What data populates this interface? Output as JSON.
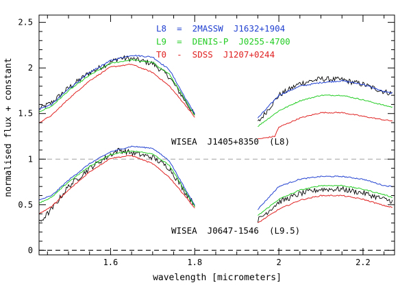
{
  "chart_data": {
    "type": "line",
    "xlabel": "wavelength [micrometers]",
    "ylabel": "normalised flux + constant",
    "xlim": [
      1.43,
      2.275
    ],
    "ylim": [
      -0.05,
      2.58
    ],
    "x_ticks": [
      1.6,
      1.8,
      2.0,
      2.2
    ],
    "x_tick_labels": [
      "1.6",
      "1.8",
      "2",
      "2.2"
    ],
    "y_ticks": [
      0,
      0.5,
      1.0,
      1.5,
      2.0,
      2.5
    ],
    "y_tick_labels": [
      "0",
      "0.5",
      "1",
      "1.5",
      "2",
      "2.5"
    ],
    "reference_lines": [
      1.0,
      0.0
    ],
    "legend": [
      {
        "label": "L8  =  2MASSW  J1632+1904",
        "color": "#1f3fd0"
      },
      {
        "label": "L9  =  DENIS-P  J0255-4700",
        "color": "#22cc22"
      },
      {
        "label": "T0  -  SDSS  J1207+0244",
        "color": "#e02020"
      }
    ],
    "annotations": [
      {
        "text": "WISEA  J1405+8350  (L8)",
        "x": 1.87,
        "y": 1.155
      },
      {
        "text": "WISEA  J0647-1546  (L9.5)",
        "x": 1.87,
        "y": 0.16
      }
    ],
    "series": [
      {
        "name": "WISEA J1405+8350 (L8)",
        "color": "#000000",
        "offset": 1.0,
        "noise": 0.03,
        "h": [
          [
            1.43,
            0.55
          ],
          [
            1.46,
            0.62
          ],
          [
            1.5,
            0.78
          ],
          [
            1.55,
            0.95
          ],
          [
            1.6,
            1.06
          ],
          [
            1.62,
            1.11
          ],
          [
            1.65,
            1.1
          ],
          [
            1.7,
            1.05
          ],
          [
            1.74,
            0.9
          ],
          [
            1.78,
            0.62
          ],
          [
            1.8,
            0.48
          ]
        ],
        "k": [
          [
            1.95,
            0.4
          ],
          [
            2.0,
            0.7
          ],
          [
            2.05,
            0.83
          ],
          [
            2.1,
            0.88
          ],
          [
            2.15,
            0.87
          ],
          [
            2.2,
            0.82
          ],
          [
            2.25,
            0.74
          ],
          [
            2.27,
            0.72
          ]
        ]
      },
      {
        "name": "L8 = 2MASSW J1632+1904",
        "color": "#1f3fd0",
        "offset": 1.0,
        "noise": 0.008,
        "h": [
          [
            1.43,
            0.55
          ],
          [
            1.46,
            0.6
          ],
          [
            1.5,
            0.77
          ],
          [
            1.55,
            0.95
          ],
          [
            1.6,
            1.08
          ],
          [
            1.65,
            1.14
          ],
          [
            1.7,
            1.12
          ],
          [
            1.74,
            0.98
          ],
          [
            1.78,
            0.65
          ],
          [
            1.8,
            0.5
          ]
        ],
        "k": [
          [
            1.95,
            0.45
          ],
          [
            2.0,
            0.7
          ],
          [
            2.05,
            0.8
          ],
          [
            2.1,
            0.84
          ],
          [
            2.15,
            0.86
          ],
          [
            2.2,
            0.82
          ],
          [
            2.25,
            0.74
          ],
          [
            2.27,
            0.72
          ]
        ]
      },
      {
        "name": "L9 = DENIS-P J0255-4700",
        "color": "#22cc22",
        "offset": 1.0,
        "noise": 0.006,
        "h": [
          [
            1.43,
            0.52
          ],
          [
            1.46,
            0.58
          ],
          [
            1.5,
            0.75
          ],
          [
            1.55,
            0.92
          ],
          [
            1.6,
            1.05
          ],
          [
            1.65,
            1.09
          ],
          [
            1.7,
            1.06
          ],
          [
            1.74,
            0.93
          ],
          [
            1.78,
            0.63
          ],
          [
            1.8,
            0.48
          ]
        ],
        "k": [
          [
            1.95,
            0.36
          ],
          [
            2.0,
            0.53
          ],
          [
            2.05,
            0.64
          ],
          [
            2.1,
            0.7
          ],
          [
            2.15,
            0.7
          ],
          [
            2.2,
            0.65
          ],
          [
            2.25,
            0.59
          ],
          [
            2.27,
            0.57
          ]
        ]
      },
      {
        "name": "T0 - SDSS J1207+0244",
        "color": "#e02020",
        "offset": 1.0,
        "noise": 0.006,
        "h": [
          [
            1.43,
            0.4
          ],
          [
            1.46,
            0.48
          ],
          [
            1.5,
            0.66
          ],
          [
            1.55,
            0.86
          ],
          [
            1.6,
            1.01
          ],
          [
            1.65,
            1.04
          ],
          [
            1.7,
            0.95
          ],
          [
            1.74,
            0.8
          ],
          [
            1.78,
            0.58
          ],
          [
            1.8,
            0.46
          ]
        ],
        "k": [
          [
            1.95,
            0.22
          ],
          [
            1.99,
            0.25
          ],
          [
            2.0,
            0.35
          ],
          [
            2.05,
            0.45
          ],
          [
            2.1,
            0.51
          ],
          [
            2.15,
            0.51
          ],
          [
            2.2,
            0.47
          ],
          [
            2.25,
            0.43
          ],
          [
            2.27,
            0.42
          ]
        ]
      },
      {
        "name": "WISEA J0647-1546 (L9.5)",
        "color": "#000000",
        "offset": 0.0,
        "noise": 0.03,
        "h": [
          [
            1.43,
            0.3
          ],
          [
            1.46,
            0.45
          ],
          [
            1.5,
            0.7
          ],
          [
            1.55,
            0.9
          ],
          [
            1.6,
            1.05
          ],
          [
            1.62,
            1.1
          ],
          [
            1.65,
            1.07
          ],
          [
            1.7,
            1.02
          ],
          [
            1.74,
            0.9
          ],
          [
            1.78,
            0.62
          ],
          [
            1.8,
            0.5
          ]
        ],
        "k": [
          [
            1.95,
            0.33
          ],
          [
            2.0,
            0.53
          ],
          [
            2.05,
            0.62
          ],
          [
            2.1,
            0.67
          ],
          [
            2.15,
            0.67
          ],
          [
            2.2,
            0.63
          ],
          [
            2.25,
            0.56
          ],
          [
            2.27,
            0.54
          ]
        ]
      },
      {
        "name": "L8 = 2MASSW J1632+1904",
        "color": "#1f3fd0",
        "offset": 0.0,
        "noise": 0.006,
        "h": [
          [
            1.43,
            0.55
          ],
          [
            1.46,
            0.6
          ],
          [
            1.5,
            0.77
          ],
          [
            1.55,
            0.95
          ],
          [
            1.6,
            1.08
          ],
          [
            1.65,
            1.14
          ],
          [
            1.7,
            1.12
          ],
          [
            1.74,
            0.98
          ],
          [
            1.78,
            0.65
          ],
          [
            1.8,
            0.5
          ]
        ],
        "k": [
          [
            1.95,
            0.45
          ],
          [
            2.0,
            0.7
          ],
          [
            2.05,
            0.78
          ],
          [
            2.1,
            0.81
          ],
          [
            2.15,
            0.81
          ],
          [
            2.2,
            0.78
          ],
          [
            2.25,
            0.71
          ],
          [
            2.27,
            0.7
          ]
        ]
      },
      {
        "name": "L9 = DENIS-P J0255-4700",
        "color": "#22cc22",
        "offset": 0.0,
        "noise": 0.006,
        "h": [
          [
            1.43,
            0.52
          ],
          [
            1.46,
            0.58
          ],
          [
            1.5,
            0.75
          ],
          [
            1.55,
            0.92
          ],
          [
            1.6,
            1.05
          ],
          [
            1.65,
            1.09
          ],
          [
            1.7,
            1.06
          ],
          [
            1.74,
            0.93
          ],
          [
            1.78,
            0.63
          ],
          [
            1.8,
            0.48
          ]
        ],
        "k": [
          [
            1.95,
            0.38
          ],
          [
            2.0,
            0.56
          ],
          [
            2.05,
            0.66
          ],
          [
            2.1,
            0.71
          ],
          [
            2.15,
            0.71
          ],
          [
            2.2,
            0.67
          ],
          [
            2.25,
            0.61
          ],
          [
            2.27,
            0.58
          ]
        ]
      },
      {
        "name": "T0 - SDSS J1207+0244",
        "color": "#e02020",
        "offset": 0.0,
        "noise": 0.006,
        "h": [
          [
            1.43,
            0.4
          ],
          [
            1.46,
            0.48
          ],
          [
            1.5,
            0.66
          ],
          [
            1.55,
            0.86
          ],
          [
            1.6,
            1.01
          ],
          [
            1.65,
            1.04
          ],
          [
            1.7,
            0.95
          ],
          [
            1.74,
            0.8
          ],
          [
            1.78,
            0.58
          ],
          [
            1.8,
            0.46
          ]
        ],
        "k": [
          [
            1.95,
            0.3
          ],
          [
            2.0,
            0.45
          ],
          [
            2.05,
            0.55
          ],
          [
            2.1,
            0.6
          ],
          [
            2.15,
            0.6
          ],
          [
            2.2,
            0.56
          ],
          [
            2.25,
            0.49
          ],
          [
            2.27,
            0.47
          ]
        ]
      }
    ]
  }
}
